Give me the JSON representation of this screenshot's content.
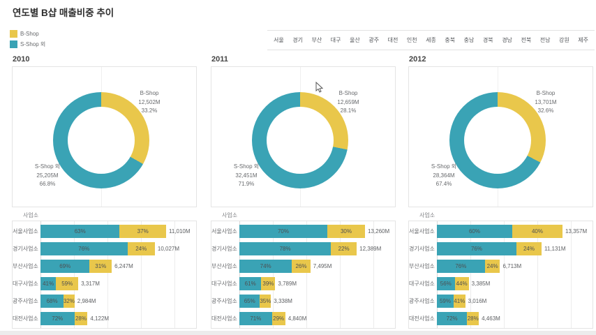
{
  "title": "연도별 B샵 매출비중 추이",
  "colors": {
    "b_shop": "#E9C74B",
    "s_shop": "#3AA3B5"
  },
  "legend": {
    "items": [
      {
        "label": "B-Shop",
        "color": "#E9C74B"
      },
      {
        "label": "S-Shop 외",
        "color": "#3AA3B5"
      }
    ]
  },
  "region_filter": {
    "items": [
      "서울",
      "경기",
      "부산",
      "대구",
      "울산",
      "광주",
      "대전",
      "인천",
      "세종",
      "충북",
      "충남",
      "경북",
      "경남",
      "전북",
      "전남",
      "강원",
      "제주"
    ]
  },
  "chart_data": [
    {
      "type": "pie",
      "year": "2010",
      "unit": "M",
      "slices": [
        {
          "name": "B-Shop",
          "value": 12502,
          "value_label": "12,502M",
          "pct": 33.2,
          "color": "#E9C74B"
        },
        {
          "name": "S-Shop 외",
          "value": 25205,
          "value_label": "25,205M",
          "pct": 66.8,
          "color": "#3AA3B5"
        }
      ]
    },
    {
      "type": "pie",
      "year": "2011",
      "unit": "M",
      "slices": [
        {
          "name": "B-Shop",
          "value": 12659,
          "value_label": "12,659M",
          "pct": 28.1,
          "color": "#E9C74B"
        },
        {
          "name": "S-Shop 외",
          "value": 32451,
          "value_label": "32,451M",
          "pct": 71.9,
          "color": "#3AA3B5"
        }
      ]
    },
    {
      "type": "pie",
      "year": "2012",
      "unit": "M",
      "slices": [
        {
          "name": "B-Shop",
          "value": 13701,
          "value_label": "13,701M",
          "pct": 32.6,
          "color": "#E9C74B"
        },
        {
          "name": "S-Shop 외",
          "value": 28364,
          "value_label": "28,364M",
          "pct": 67.4,
          "color": "#3AA3B5"
        }
      ]
    },
    {
      "type": "bar",
      "year": "2010",
      "axis_title": "사업소",
      "unit": "M",
      "categories": [
        "서울사업소",
        "경기사업소",
        "부산사업소",
        "대구사업소",
        "광주사업소",
        "대전사업소"
      ],
      "series": [
        {
          "name": "S-Shop 외",
          "pct": [
            63,
            76,
            69,
            41,
            68,
            72
          ]
        },
        {
          "name": "B-Shop",
          "pct": [
            37,
            24,
            31,
            59,
            32,
            28
          ]
        }
      ],
      "totals": [
        11010,
        10027,
        6247,
        3317,
        2984,
        4122
      ],
      "total_labels": [
        "11,010M",
        "10,027M",
        "6,247M",
        "3,317M",
        "2,984M",
        "4,122M"
      ]
    },
    {
      "type": "bar",
      "year": "2011",
      "axis_title": "사업소",
      "unit": "M",
      "categories": [
        "서울사업소",
        "경기사업소",
        "부산사업소",
        "대구사업소",
        "광주사업소",
        "대전사업소"
      ],
      "series": [
        {
          "name": "S-Shop 외",
          "pct": [
            70,
            78,
            74,
            61,
            65,
            71
          ]
        },
        {
          "name": "B-Shop",
          "pct": [
            30,
            22,
            26,
            39,
            35,
            29
          ]
        }
      ],
      "totals": [
        13260,
        12389,
        7495,
        3789,
        3338,
        4840
      ],
      "total_labels": [
        "13,260M",
        "12,389M",
        "7,495M",
        "3,789M",
        "3,338M",
        "4,840M"
      ]
    },
    {
      "type": "bar",
      "year": "2012",
      "axis_title": "사업소",
      "unit": "M",
      "categories": [
        "서울사업소",
        "경기사업소",
        "부산사업소",
        "대구사업소",
        "광주사업소",
        "대전사업소"
      ],
      "series": [
        {
          "name": "S-Shop 외",
          "pct": [
            60,
            76,
            76,
            56,
            59,
            72
          ]
        },
        {
          "name": "B-Shop",
          "pct": [
            40,
            24,
            24,
            44,
            41,
            28
          ]
        }
      ],
      "totals": [
        13357,
        11131,
        6713,
        3385,
        3016,
        4463
      ],
      "total_labels": [
        "13,357M",
        "11,131M",
        "6,713M",
        "3,385M",
        "3,016M",
        "4,463M"
      ]
    }
  ]
}
